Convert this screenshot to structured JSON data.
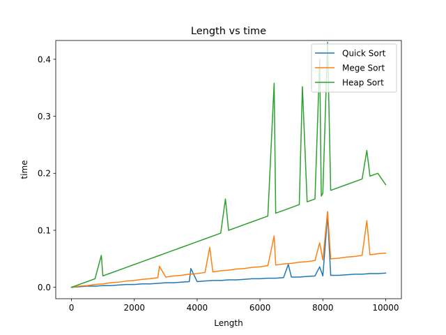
{
  "chart_data": {
    "type": "line",
    "title": "Length vs time",
    "xlabel": "Length",
    "ylabel": "time",
    "xlim": [
      -500,
      10500
    ],
    "ylim": [
      -0.02,
      0.433
    ],
    "xticks": [
      0,
      2000,
      4000,
      6000,
      8000,
      10000
    ],
    "xtick_labels": [
      "0",
      "2000",
      "4000",
      "6000",
      "8000",
      "10000"
    ],
    "yticks": [
      0.0,
      0.1,
      0.2,
      0.3,
      0.4
    ],
    "ytick_labels": [
      "0.0",
      "0.1",
      "0.2",
      "0.3",
      "0.4"
    ],
    "grid": false,
    "legend": "top-right",
    "series": [
      {
        "name": "Quick Sort",
        "color": "#1f77b4",
        "x": [
          0,
          250,
          500,
          750,
          1000,
          1250,
          1500,
          1750,
          2000,
          2250,
          2500,
          2750,
          3000,
          3250,
          3500,
          3750,
          3800,
          4000,
          4250,
          4500,
          4750,
          5000,
          5250,
          5500,
          5750,
          6000,
          6250,
          6500,
          6750,
          6900,
          7000,
          7250,
          7500,
          7750,
          7900,
          8000,
          8150,
          8250,
          8500,
          8750,
          9000,
          9250,
          9500,
          9750,
          10000
        ],
        "y": [
          0.0,
          0.001,
          0.002,
          0.002,
          0.003,
          0.003,
          0.004,
          0.005,
          0.005,
          0.006,
          0.006,
          0.007,
          0.008,
          0.008,
          0.009,
          0.01,
          0.033,
          0.01,
          0.011,
          0.012,
          0.012,
          0.013,
          0.013,
          0.014,
          0.015,
          0.015,
          0.016,
          0.016,
          0.017,
          0.04,
          0.018,
          0.018,
          0.019,
          0.02,
          0.036,
          0.02,
          0.127,
          0.021,
          0.021,
          0.022,
          0.023,
          0.023,
          0.024,
          0.024,
          0.025
        ]
      },
      {
        "name": "Mege Sort",
        "color": "#ff7f0e",
        "x": [
          0,
          250,
          500,
          750,
          1000,
          1250,
          1500,
          1750,
          2000,
          2250,
          2500,
          2750,
          2800,
          3000,
          3250,
          3500,
          3750,
          4000,
          4250,
          4400,
          4500,
          4750,
          5000,
          5250,
          5500,
          5750,
          6000,
          6250,
          6450,
          6500,
          6750,
          7000,
          7250,
          7500,
          7750,
          7900,
          8000,
          8150,
          8250,
          8500,
          8750,
          9000,
          9250,
          9400,
          9500,
          9750,
          10000
        ],
        "y": [
          0.0,
          0.002,
          0.003,
          0.005,
          0.006,
          0.008,
          0.009,
          0.011,
          0.012,
          0.014,
          0.015,
          0.017,
          0.037,
          0.018,
          0.02,
          0.021,
          0.023,
          0.024,
          0.026,
          0.07,
          0.027,
          0.029,
          0.03,
          0.032,
          0.033,
          0.035,
          0.036,
          0.038,
          0.09,
          0.039,
          0.041,
          0.042,
          0.044,
          0.045,
          0.047,
          0.078,
          0.048,
          0.133,
          0.05,
          0.051,
          0.053,
          0.054,
          0.056,
          0.117,
          0.057,
          0.059,
          0.06
        ]
      },
      {
        "name": "Heap Sort",
        "color": "#2ca02c",
        "x": [
          0,
          250,
          500,
          750,
          950,
          1000,
          1250,
          1500,
          1750,
          2000,
          2250,
          2500,
          2750,
          3000,
          3250,
          3500,
          3750,
          4000,
          4250,
          4500,
          4750,
          4900,
          5000,
          5250,
          5500,
          5750,
          6000,
          6250,
          6450,
          6500,
          6750,
          7000,
          7250,
          7350,
          7500,
          7750,
          7900,
          7950,
          8000,
          8150,
          8250,
          8500,
          8750,
          9000,
          9250,
          9400,
          9500,
          9750,
          10000
        ],
        "y": [
          0.0,
          0.005,
          0.01,
          0.015,
          0.056,
          0.02,
          0.025,
          0.03,
          0.035,
          0.04,
          0.045,
          0.05,
          0.055,
          0.06,
          0.065,
          0.07,
          0.075,
          0.08,
          0.085,
          0.09,
          0.095,
          0.155,
          0.1,
          0.105,
          0.11,
          0.115,
          0.12,
          0.125,
          0.358,
          0.13,
          0.135,
          0.14,
          0.145,
          0.352,
          0.15,
          0.155,
          0.4,
          0.16,
          0.165,
          0.43,
          0.17,
          0.175,
          0.18,
          0.185,
          0.19,
          0.24,
          0.195,
          0.2,
          0.18
        ]
      }
    ]
  }
}
